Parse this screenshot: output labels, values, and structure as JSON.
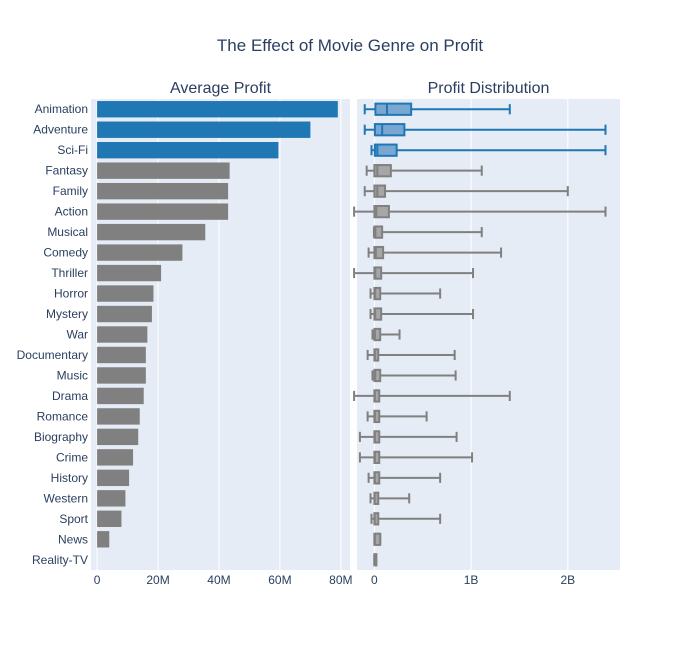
{
  "chart_data": {
    "type": "bar",
    "title": "The Effect of Movie Genre on Profit",
    "colors": {
      "highlight": "#1f77b4",
      "highlight_box_fill": "#7aa6d2",
      "muted": "#808080",
      "muted_box_fill": "#a6a6a6",
      "plot_bg": "#e5ecf6",
      "grid": "#ffffff",
      "text": "#2a3f5f"
    },
    "categories": [
      "Animation",
      "Adventure",
      "Sci-Fi",
      "Fantasy",
      "Family",
      "Action",
      "Musical",
      "Comedy",
      "Thriller",
      "Horror",
      "Mystery",
      "War",
      "Documentary",
      "Music",
      "Drama",
      "Romance",
      "Biography",
      "Crime",
      "History",
      "Western",
      "Sport",
      "News",
      "Reality-TV"
    ],
    "highlighted": [
      "Animation",
      "Adventure",
      "Sci-Fi"
    ],
    "panels": [
      {
        "type": "bar",
        "subtitle": "Average Profit",
        "orientation": "horizontal",
        "x_ticks": [
          "0",
          "20M",
          "40M",
          "60M",
          "80M"
        ],
        "x_tick_values": [
          0,
          20000000,
          40000000,
          60000000,
          80000000
        ],
        "xlim": [
          -2000000,
          83000000
        ],
        "grid": true,
        "values": [
          79000000,
          70000000,
          59500000,
          43500000,
          43000000,
          43000000,
          35500000,
          28000000,
          21000000,
          18500000,
          18000000,
          16500000,
          16000000,
          16000000,
          15300000,
          14000000,
          13500000,
          11800000,
          10500000,
          9300000,
          8000000,
          4000000,
          0
        ]
      },
      {
        "type": "box",
        "subtitle": "Profit Distribution",
        "orientation": "horizontal",
        "x_ticks": [
          "0",
          "1B",
          "2B"
        ],
        "x_tick_values": [
          0,
          1000000000,
          2000000000
        ],
        "xlim": [
          -180000000,
          2540000000
        ],
        "grid": true,
        "boxes": [
          {
            "min": -100000000,
            "q1": 10000000,
            "median": 130000000,
            "q3": 380000000,
            "max": 1400000000
          },
          {
            "min": -100000000,
            "q1": 5000000,
            "median": 80000000,
            "q3": 310000000,
            "max": 2390000000
          },
          {
            "min": -30000000,
            "q1": 5000000,
            "median": 30000000,
            "q3": 230000000,
            "max": 2390000000
          },
          {
            "min": -80000000,
            "q1": 0,
            "median": 30000000,
            "q3": 170000000,
            "max": 1110000000
          },
          {
            "min": -100000000,
            "q1": 0,
            "median": 30000000,
            "q3": 110000000,
            "max": 2000000000
          },
          {
            "min": -210000000,
            "q1": 0,
            "median": 20000000,
            "q3": 150000000,
            "max": 2390000000
          },
          {
            "min": -5000000,
            "q1": 0,
            "median": 10000000,
            "q3": 80000000,
            "max": 1110000000
          },
          {
            "min": -60000000,
            "q1": 0,
            "median": 15000000,
            "q3": 90000000,
            "max": 1310000000
          },
          {
            "min": -210000000,
            "q1": 0,
            "median": 10000000,
            "q3": 70000000,
            "max": 1020000000
          },
          {
            "min": -40000000,
            "q1": 0,
            "median": 8000000,
            "q3": 60000000,
            "max": 680000000
          },
          {
            "min": -40000000,
            "q1": 0,
            "median": 8000000,
            "q3": 70000000,
            "max": 1020000000
          },
          {
            "min": -20000000,
            "q1": 0,
            "median": 5000000,
            "q3": 60000000,
            "max": 260000000
          },
          {
            "min": -70000000,
            "q1": 0,
            "median": 5000000,
            "q3": 40000000,
            "max": 830000000
          },
          {
            "min": -20000000,
            "q1": 0,
            "median": 8000000,
            "q3": 60000000,
            "max": 840000000
          },
          {
            "min": -210000000,
            "q1": 0,
            "median": 5000000,
            "q3": 50000000,
            "max": 1400000000
          },
          {
            "min": -70000000,
            "q1": 0,
            "median": 5000000,
            "q3": 50000000,
            "max": 540000000
          },
          {
            "min": -150000000,
            "q1": 0,
            "median": 5000000,
            "q3": 50000000,
            "max": 850000000
          },
          {
            "min": -150000000,
            "q1": 0,
            "median": 5000000,
            "q3": 50000000,
            "max": 1010000000
          },
          {
            "min": -60000000,
            "q1": 0,
            "median": 5000000,
            "q3": 50000000,
            "max": 680000000
          },
          {
            "min": -40000000,
            "q1": 0,
            "median": 3000000,
            "q3": 40000000,
            "max": 360000000
          },
          {
            "min": -30000000,
            "q1": 0,
            "median": 3000000,
            "q3": 40000000,
            "max": 680000000
          },
          {
            "min": 0,
            "q1": 0,
            "median": 5000000,
            "q3": 60000000,
            "max": 60000000
          },
          {
            "min": 0,
            "q1": 0,
            "median": 0,
            "q3": 0,
            "max": 0
          }
        ]
      }
    ]
  }
}
